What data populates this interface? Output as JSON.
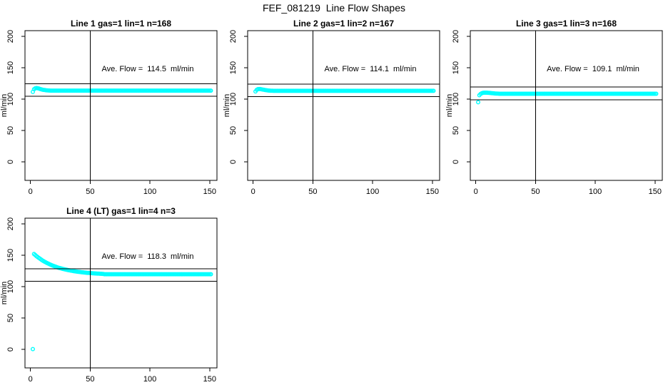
{
  "window": {
    "title": "FEF_081219  Line Flow Shapes",
    "bg_color": "#ffffff",
    "fg_color": "#000000",
    "point_color": "#00ffff"
  },
  "chart_data": [
    {
      "type": "scatter",
      "title": "Line 1 gas=1 lin=1 n=168",
      "n": 168,
      "ave_flow": 114.5,
      "annotation": "Ave. Flow =  114.5  ml/min",
      "annotation_xy": [
        98,
        148
      ],
      "ylabel": "ml/min",
      "xlim": [
        -4.6,
        156.1
      ],
      "ylim": [
        -29.5,
        209.1
      ],
      "x_ticks": [
        0,
        50,
        100,
        150
      ],
      "y_ticks": [
        0,
        50,
        100,
        150,
        200
      ],
      "vline_x": 50,
      "hlines": [
        124.5,
        104.5
      ],
      "grid": false,
      "series": [
        {
          "name": "flow",
          "marker": "open-circle",
          "color": "#00ffff",
          "x_start": 2,
          "x_step": 1,
          "n": 150,
          "y_head": [
            111.5,
            115.8,
            117.2,
            117.6,
            117.4,
            116.9,
            116.2,
            115.6,
            115.1,
            114.7,
            114.4,
            114.1,
            113.9,
            113.8,
            113.7
          ],
          "y_flat": 113.6
        }
      ]
    },
    {
      "type": "scatter",
      "title": "Line 2 gas=1 lin=2 n=167",
      "n": 167,
      "ave_flow": 114.1,
      "annotation": "Ave. Flow =  114.1  ml/min",
      "annotation_xy": [
        98,
        148
      ],
      "ylabel": "ml/min",
      "xlim": [
        -4.6,
        156.1
      ],
      "ylim": [
        -29.5,
        209.1
      ],
      "x_ticks": [
        0,
        50,
        100,
        150
      ],
      "y_ticks": [
        0,
        50,
        100,
        150,
        200
      ],
      "vline_x": 50,
      "hlines": [
        124.1,
        104.1
      ],
      "grid": false,
      "series": [
        {
          "name": "flow",
          "marker": "open-circle",
          "color": "#00ffff",
          "x_start": 2,
          "x_step": 1,
          "n": 150,
          "y_head": [
            112.3,
            114.8,
            115.9,
            116.1,
            116.0,
            115.7,
            115.3,
            114.9,
            114.5,
            114.2,
            113.9,
            113.7,
            113.5,
            113.4,
            113.3
          ],
          "y_flat": 113.2
        }
      ]
    },
    {
      "type": "scatter",
      "title": "Line 3 gas=1 lin=3 n=168",
      "n": 168,
      "ave_flow": 109.1,
      "annotation": "Ave. Flow =  109.1  ml/min",
      "annotation_xy": [
        98,
        148
      ],
      "ylabel": "ml/min",
      "xlim": [
        -4.6,
        156.1
      ],
      "ylim": [
        -29.5,
        209.1
      ],
      "x_ticks": [
        0,
        50,
        100,
        150
      ],
      "y_ticks": [
        0,
        50,
        100,
        150,
        200
      ],
      "vline_x": 50,
      "hlines": [
        119.1,
        99.1
      ],
      "grid": false,
      "series": [
        {
          "name": "flow",
          "marker": "open-circle",
          "color": "#00ffff",
          "x_start": 2,
          "x_step": 1,
          "n": 150,
          "y_head": [
            95.0,
            106.3,
            108.2,
            109.3,
            109.9,
            110.2,
            110.3,
            110.2,
            110.1,
            110.0,
            109.8,
            109.6,
            109.4,
            109.2,
            109.0,
            108.9,
            108.8,
            108.7
          ],
          "y_flat": 108.6
        }
      ]
    },
    {
      "type": "scatter",
      "title": "Line 4 (LT) gas=1 lin=4 n=3",
      "n": 3,
      "ave_flow": 118.3,
      "annotation": "Ave. Flow =  118.3  ml/min",
      "annotation_xy": [
        98,
        148
      ],
      "ylabel": "ml/min",
      "xlim": [
        -4.6,
        156.1
      ],
      "ylim": [
        -29.5,
        209.1
      ],
      "x_ticks": [
        0,
        50,
        100,
        150
      ],
      "y_ticks": [
        0,
        50,
        100,
        150,
        200
      ],
      "vline_x": 50,
      "hlines": [
        128.3,
        108.3
      ],
      "grid": false,
      "series": [
        {
          "name": "flow",
          "marker": "open-circle",
          "color": "#00ffff",
          "x_start": 2,
          "x_step": 1,
          "n": 150,
          "y_head": [
            0.5,
            152.0,
            150.3,
            148.7,
            147.2,
            145.7,
            144.4,
            143.1,
            141.8,
            140.7,
            139.6,
            138.5,
            137.5,
            136.6,
            135.7,
            134.8,
            134.0,
            133.2,
            132.5,
            131.8,
            131.2,
            130.5,
            129.9,
            129.4,
            128.9,
            128.3,
            127.9,
            127.4,
            127.0,
            126.6,
            126.2,
            125.8,
            125.5,
            125.1,
            124.8,
            124.5,
            124.2,
            123.9,
            123.7,
            123.4,
            123.2,
            122.9,
            122.7,
            122.5,
            122.3,
            122.1,
            121.9,
            121.8,
            121.6,
            121.5,
            121.3,
            121.2,
            121.1,
            120.9,
            120.8,
            120.7,
            120.6,
            120.5,
            120.4,
            120.3
          ],
          "y_flat": 119.8
        }
      ]
    }
  ]
}
